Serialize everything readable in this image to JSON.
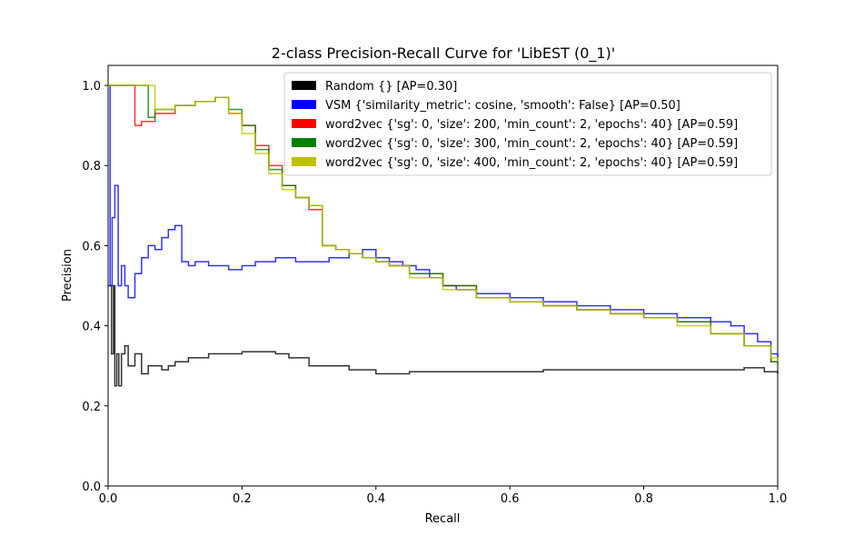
{
  "chart_data": {
    "type": "line",
    "title": "2-class Precision-Recall Curve for 'LibEST (0_1)'",
    "xlabel": "Recall",
    "ylabel": "Precision",
    "xlim": [
      0,
      1
    ],
    "ylim": [
      0,
      1.05
    ],
    "xticks": [
      0.0,
      0.2,
      0.4,
      0.6,
      0.8,
      1.0
    ],
    "yticks": [
      0.0,
      0.2,
      0.4,
      0.6,
      0.8,
      1.0
    ],
    "xtick_labels": [
      "0.0",
      "0.2",
      "0.4",
      "0.6",
      "0.8",
      "1.0"
    ],
    "ytick_labels": [
      "0.0",
      "0.2",
      "0.4",
      "0.6",
      "0.8",
      "1.0"
    ],
    "grid": false,
    "legend_position": "top-right",
    "series": [
      {
        "name": "Random {} [AP=0.30]",
        "color": "#000000",
        "x": [
          0.0,
          0.005,
          0.008,
          0.01,
          0.013,
          0.016,
          0.02,
          0.025,
          0.03,
          0.04,
          0.05,
          0.06,
          0.07,
          0.08,
          0.09,
          0.1,
          0.12,
          0.15,
          0.18,
          0.2,
          0.25,
          0.27,
          0.3,
          0.33,
          0.36,
          0.4,
          0.45,
          0.5,
          0.55,
          0.6,
          0.65,
          0.7,
          0.75,
          0.8,
          0.85,
          0.9,
          0.95,
          0.98,
          1.0
        ],
        "y": [
          0.5,
          0.33,
          0.5,
          0.25,
          0.33,
          0.25,
          0.33,
          0.35,
          0.3,
          0.33,
          0.28,
          0.3,
          0.3,
          0.29,
          0.3,
          0.31,
          0.32,
          0.33,
          0.33,
          0.335,
          0.33,
          0.32,
          0.3,
          0.3,
          0.29,
          0.28,
          0.285,
          0.285,
          0.285,
          0.285,
          0.29,
          0.29,
          0.29,
          0.29,
          0.29,
          0.29,
          0.295,
          0.285,
          0.28
        ]
      },
      {
        "name": "VSM {'similarity_metric': cosine, 'smooth': False} [AP=0.50]",
        "color": "#0000ff",
        "x": [
          0.0,
          0.003,
          0.006,
          0.01,
          0.015,
          0.02,
          0.025,
          0.03,
          0.04,
          0.05,
          0.06,
          0.07,
          0.08,
          0.09,
          0.1,
          0.11,
          0.12,
          0.13,
          0.15,
          0.18,
          0.2,
          0.22,
          0.25,
          0.28,
          0.3,
          0.33,
          0.36,
          0.38,
          0.4,
          0.42,
          0.44,
          0.46,
          0.48,
          0.5,
          0.52,
          0.55,
          0.6,
          0.65,
          0.7,
          0.75,
          0.8,
          0.85,
          0.88,
          0.9,
          0.93,
          0.95,
          0.97,
          0.99,
          1.0
        ],
        "y": [
          1.0,
          0.5,
          0.67,
          0.75,
          0.5,
          0.55,
          0.5,
          0.47,
          0.53,
          0.57,
          0.6,
          0.59,
          0.62,
          0.64,
          0.65,
          0.56,
          0.55,
          0.56,
          0.55,
          0.54,
          0.55,
          0.56,
          0.57,
          0.56,
          0.56,
          0.57,
          0.58,
          0.59,
          0.57,
          0.56,
          0.55,
          0.54,
          0.52,
          0.5,
          0.49,
          0.48,
          0.47,
          0.46,
          0.45,
          0.44,
          0.43,
          0.42,
          0.42,
          0.41,
          0.4,
          0.38,
          0.36,
          0.33,
          0.31
        ]
      },
      {
        "name": "word2vec {'sg': 0, 'size': 200, 'min_count': 2, 'epochs': 40} [AP=0.59]",
        "color": "#ff0000",
        "x": [
          0.0,
          0.04,
          0.05,
          0.07,
          0.1,
          0.13,
          0.16,
          0.18,
          0.2,
          0.22,
          0.24,
          0.26,
          0.28,
          0.3,
          0.32,
          0.34,
          0.36,
          0.38,
          0.4,
          0.42,
          0.45,
          0.5,
          0.55,
          0.6,
          0.65,
          0.7,
          0.75,
          0.8,
          0.85,
          0.9,
          0.95,
          0.99,
          1.0
        ],
        "y": [
          1.0,
          0.9,
          0.91,
          0.93,
          0.95,
          0.96,
          0.97,
          0.93,
          0.9,
          0.85,
          0.8,
          0.75,
          0.72,
          0.69,
          0.6,
          0.59,
          0.58,
          0.57,
          0.56,
          0.55,
          0.53,
          0.5,
          0.47,
          0.46,
          0.45,
          0.44,
          0.43,
          0.42,
          0.41,
          0.38,
          0.35,
          0.31,
          0.305
        ]
      },
      {
        "name": "word2vec {'sg': 0, 'size': 300, 'min_count': 2, 'epochs': 40} [AP=0.59]",
        "color": "#008000",
        "x": [
          0.0,
          0.06,
          0.07,
          0.1,
          0.13,
          0.16,
          0.18,
          0.2,
          0.22,
          0.24,
          0.26,
          0.28,
          0.3,
          0.32,
          0.34,
          0.36,
          0.38,
          0.4,
          0.42,
          0.45,
          0.5,
          0.55,
          0.6,
          0.65,
          0.7,
          0.75,
          0.8,
          0.85,
          0.9,
          0.95,
          0.99,
          1.0
        ],
        "y": [
          1.0,
          0.92,
          0.94,
          0.95,
          0.96,
          0.97,
          0.94,
          0.9,
          0.84,
          0.79,
          0.75,
          0.72,
          0.7,
          0.6,
          0.59,
          0.58,
          0.57,
          0.56,
          0.55,
          0.53,
          0.5,
          0.47,
          0.46,
          0.45,
          0.44,
          0.43,
          0.42,
          0.41,
          0.38,
          0.35,
          0.31,
          0.3
        ]
      },
      {
        "name": "word2vec {'sg': 0, 'size': 400, 'min_count': 2, 'epochs': 40} [AP=0.59]",
        "color": "#bfbf00",
        "x": [
          0.0,
          0.07,
          0.1,
          0.13,
          0.16,
          0.18,
          0.2,
          0.22,
          0.24,
          0.26,
          0.28,
          0.3,
          0.32,
          0.34,
          0.36,
          0.38,
          0.4,
          0.42,
          0.45,
          0.5,
          0.55,
          0.6,
          0.65,
          0.7,
          0.75,
          0.8,
          0.85,
          0.9,
          0.95,
          0.99,
          1.0
        ],
        "y": [
          1.0,
          0.94,
          0.95,
          0.96,
          0.97,
          0.93,
          0.88,
          0.83,
          0.78,
          0.74,
          0.72,
          0.7,
          0.6,
          0.59,
          0.58,
          0.57,
          0.56,
          0.55,
          0.52,
          0.49,
          0.47,
          0.46,
          0.45,
          0.44,
          0.43,
          0.42,
          0.4,
          0.38,
          0.35,
          0.32,
          0.31
        ]
      }
    ]
  }
}
